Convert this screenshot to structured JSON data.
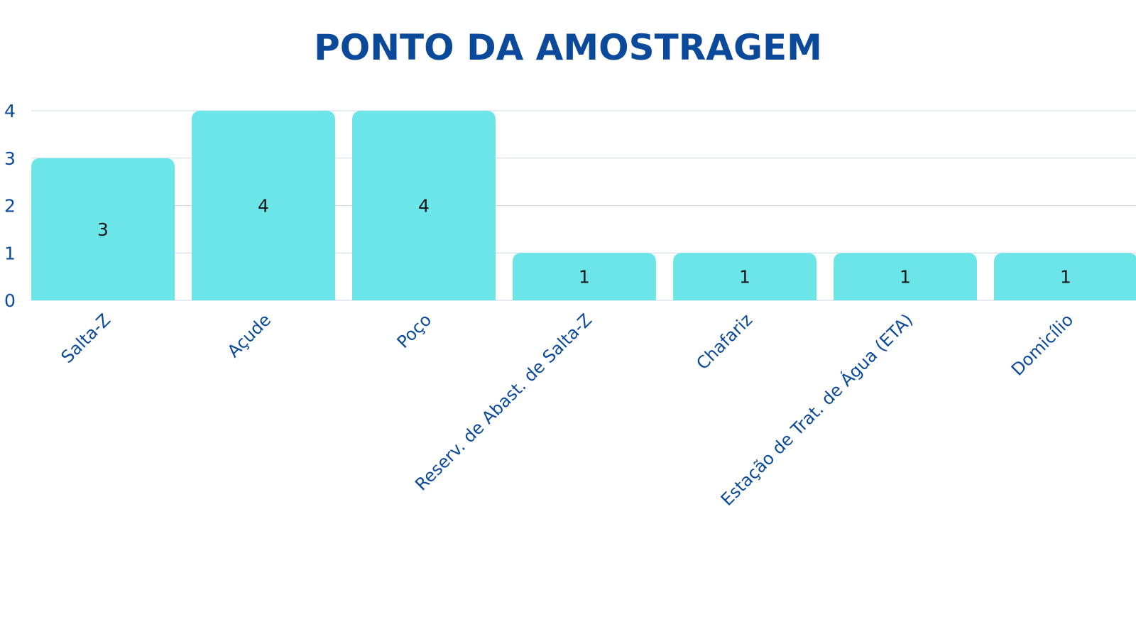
{
  "chart_data": {
    "type": "bar",
    "title": "PONTO DA AMOSTRAGEM",
    "categories": [
      "Salta-Z",
      "Açude",
      "Poço",
      "Reserv. de Abast. de Salta-Z",
      "Chafariz",
      "Estação de Trat. de Água (ETA)",
      "Domicílio"
    ],
    "values": [
      3,
      4,
      4,
      1,
      1,
      1,
      1
    ],
    "data_labels": [
      "3",
      "4",
      "4",
      "1",
      "1",
      "1",
      "1"
    ],
    "y_ticks": [
      "0",
      "1",
      "2",
      "3",
      "4"
    ],
    "xlabel": "",
    "ylabel": "",
    "ylim": [
      0,
      4
    ],
    "grid": true,
    "legend": "none"
  },
  "colors": {
    "bar": "#6ce5e8",
    "title": "#0b4a9a",
    "tick_text": "#0b4a9a",
    "grid": "#cfd9e6",
    "label": "#1a1a1a"
  }
}
